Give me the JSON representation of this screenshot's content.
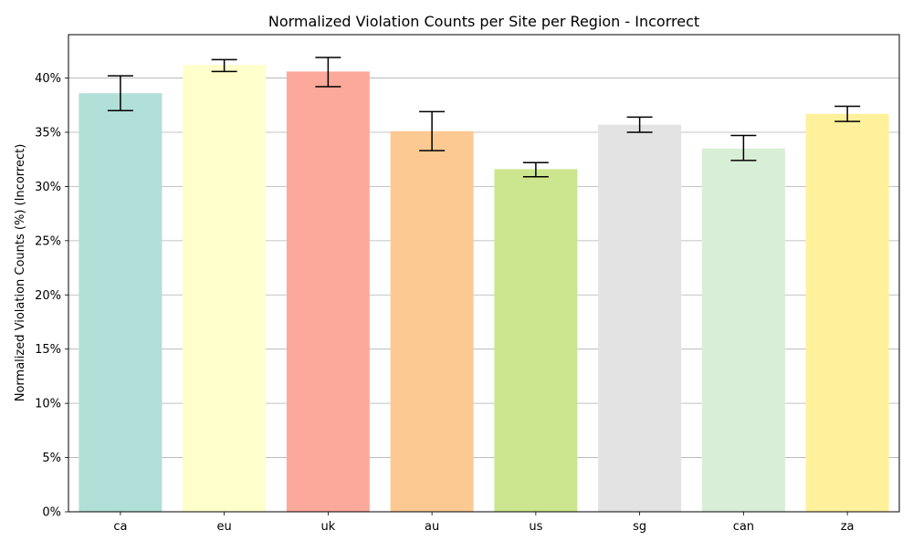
{
  "chart_data": {
    "type": "bar",
    "title": "Normalized Violation Counts per Site per Region - Incorrect",
    "xlabel": "",
    "ylabel": "Normalized Violation Counts (%) (Incorrect)",
    "categories": [
      "ca",
      "eu",
      "uk",
      "au",
      "us",
      "sg",
      "can",
      "za"
    ],
    "values": [
      38.6,
      41.2,
      40.6,
      35.1,
      31.6,
      35.7,
      33.5,
      36.7
    ],
    "error_low": [
      37.0,
      40.6,
      39.2,
      33.3,
      30.9,
      35.0,
      32.4,
      36.0
    ],
    "error_high": [
      40.2,
      41.7,
      41.9,
      36.9,
      32.2,
      36.4,
      34.7,
      37.4
    ],
    "colors": [
      "#b0e0d8",
      "#ffffcc",
      "#fca99b",
      "#fdc993",
      "#cce690",
      "#e3e3e3",
      "#d9eed6",
      "#fff09b"
    ],
    "ylim": [
      0,
      44
    ],
    "yticks": [
      0,
      5,
      10,
      15,
      20,
      25,
      30,
      35,
      40
    ],
    "ytick_labels": [
      "0%",
      "5%",
      "10%",
      "15%",
      "20%",
      "25%",
      "30%",
      "35%",
      "40%"
    ],
    "grid": "horizontal",
    "legend": "none"
  }
}
